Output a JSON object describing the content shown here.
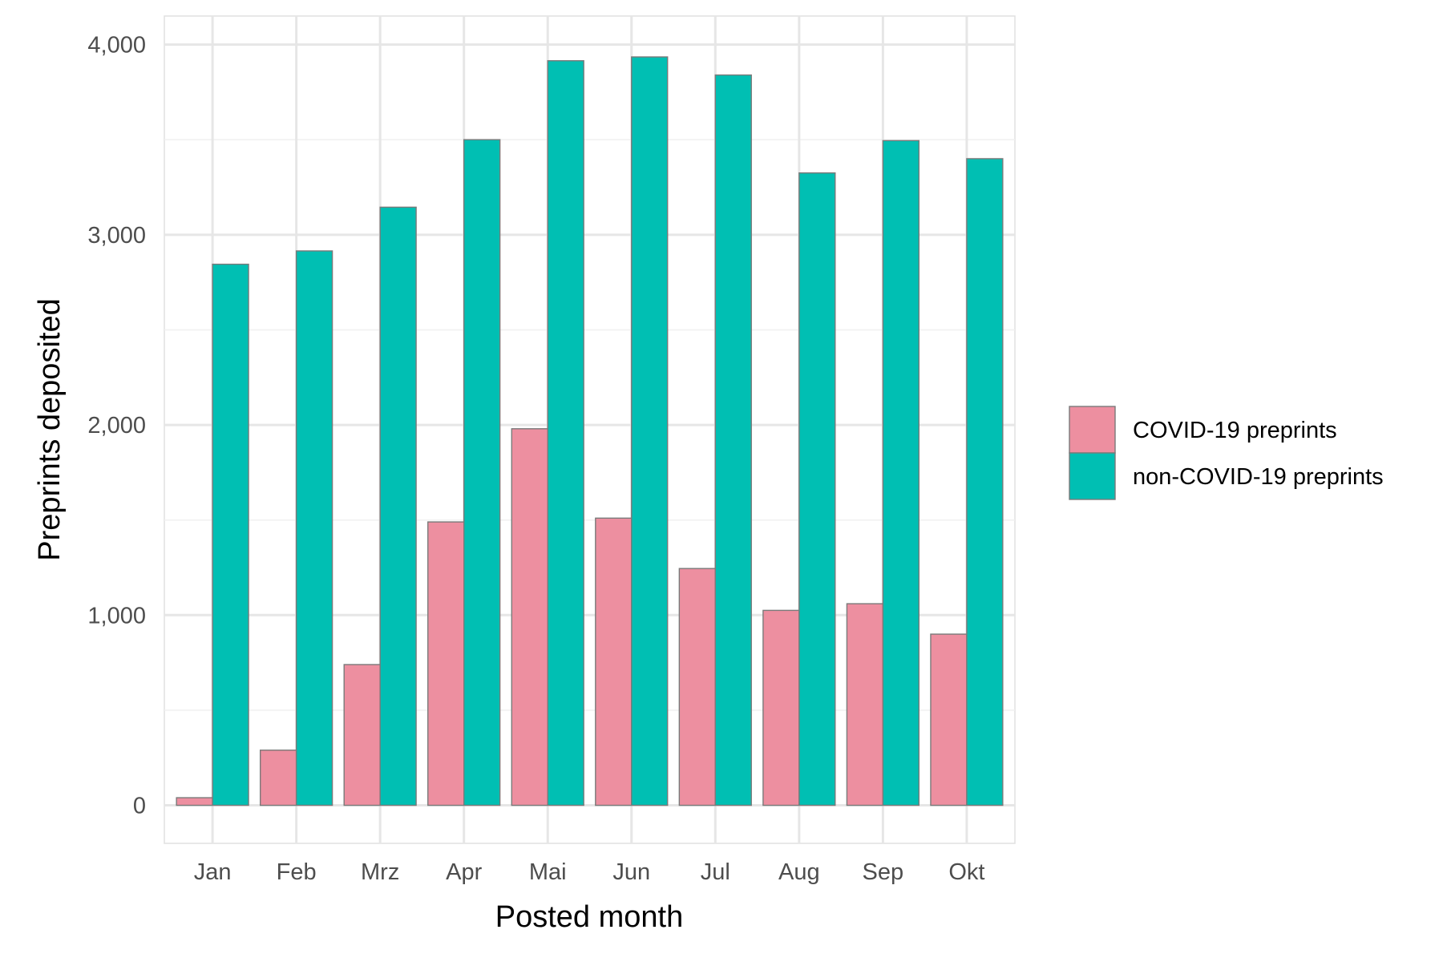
{
  "chart_data": {
    "type": "bar",
    "title": "",
    "xlabel": "Posted month",
    "ylabel": "Preprints deposited",
    "categories": [
      "Jan",
      "Feb",
      "Mrz",
      "Apr",
      "Mai",
      "Jun",
      "Jul",
      "Aug",
      "Sep",
      "Okt"
    ],
    "series": [
      {
        "name": "COVID-19 preprints",
        "color": "#ED8FA0",
        "values": [
          40,
          290,
          740,
          1490,
          1980,
          1510,
          1245,
          1025,
          1060,
          900
        ]
      },
      {
        "name": "non-COVID-19 preprints",
        "color": "#00BFB3",
        "values": [
          2845,
          2915,
          3145,
          3500,
          3915,
          3935,
          3840,
          3325,
          3495,
          3400
        ]
      }
    ],
    "ylim": [
      -200,
      4150
    ],
    "yticks": [
      0,
      1000,
      2000,
      3000,
      4000
    ],
    "ytick_labels": [
      "0",
      "1,000",
      "2,000",
      "3,000",
      "4,000"
    ],
    "grid": true,
    "legend": "right"
  }
}
